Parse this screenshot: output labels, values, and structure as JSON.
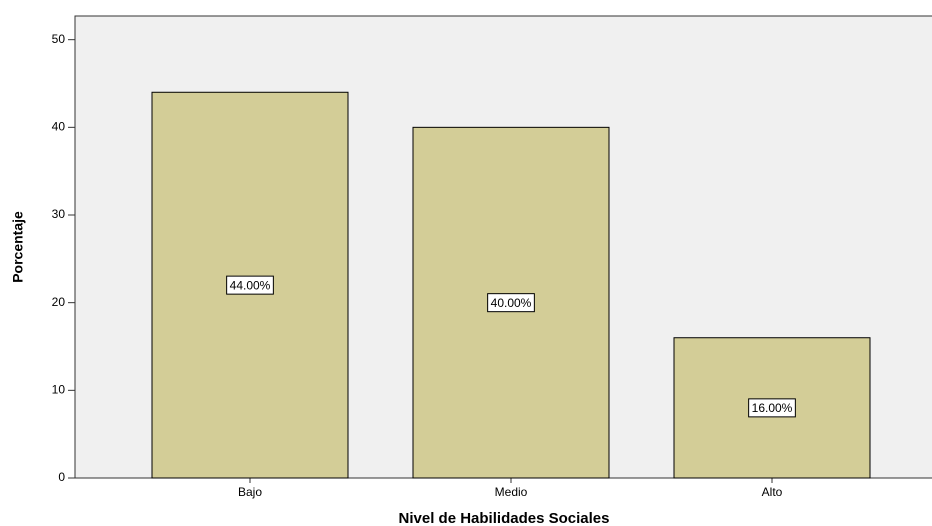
{
  "chart_data": {
    "type": "bar",
    "categories": [
      "Bajo",
      "Medio",
      "Alto"
    ],
    "values": [
      44,
      40,
      16
    ],
    "value_labels": [
      "44.00%",
      "40.00%",
      "16.00%"
    ],
    "color": "#d3cd97",
    "xlabel": "Nivel de Habilidades Sociales",
    "ylabel": "Porcentaje",
    "ylim": [
      0,
      52.7
    ],
    "yticks": [
      0,
      10,
      20,
      30,
      40,
      50
    ],
    "grid": false
  }
}
